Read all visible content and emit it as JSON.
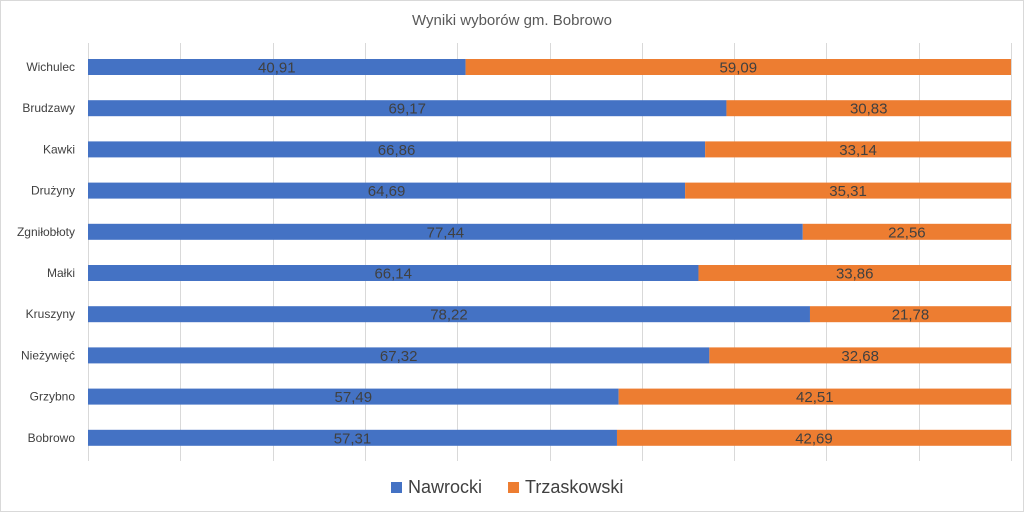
{
  "chart_data": {
    "type": "bar",
    "orientation": "horizontal",
    "stacked": "percent",
    "title": "Wyniki wyborów gm. Bobrowo",
    "categories": [
      "Wichulec",
      "Brudzawy",
      "Kawki",
      "Drużyny",
      "Zgniłobłoty",
      "Małki",
      "Kruszyny",
      "Nieżywięć",
      "Grzybno",
      "Bobrowo"
    ],
    "series": [
      {
        "name": "Nawrocki",
        "color": "#4472C4",
        "values": [
          40.91,
          69.17,
          66.86,
          64.69,
          77.44,
          66.14,
          78.22,
          67.32,
          57.49,
          57.31
        ],
        "labels": [
          "40,91",
          "69,17",
          "66,86",
          "64,69",
          "77,44",
          "66,14",
          "78,22",
          "67,32",
          "57,49",
          "57,31"
        ]
      },
      {
        "name": "Trzaskowski",
        "color": "#ED7D31",
        "values": [
          59.09,
          30.83,
          33.14,
          35.31,
          22.56,
          33.86,
          21.78,
          32.68,
          42.51,
          42.69
        ],
        "labels": [
          "59,09",
          "30,83",
          "33,14",
          "35,31",
          "22,56",
          "33,86",
          "21,78",
          "32,68",
          "42,51",
          "42,69"
        ]
      }
    ],
    "xlim": [
      0,
      100
    ],
    "grid": true,
    "legend": "bottom"
  }
}
